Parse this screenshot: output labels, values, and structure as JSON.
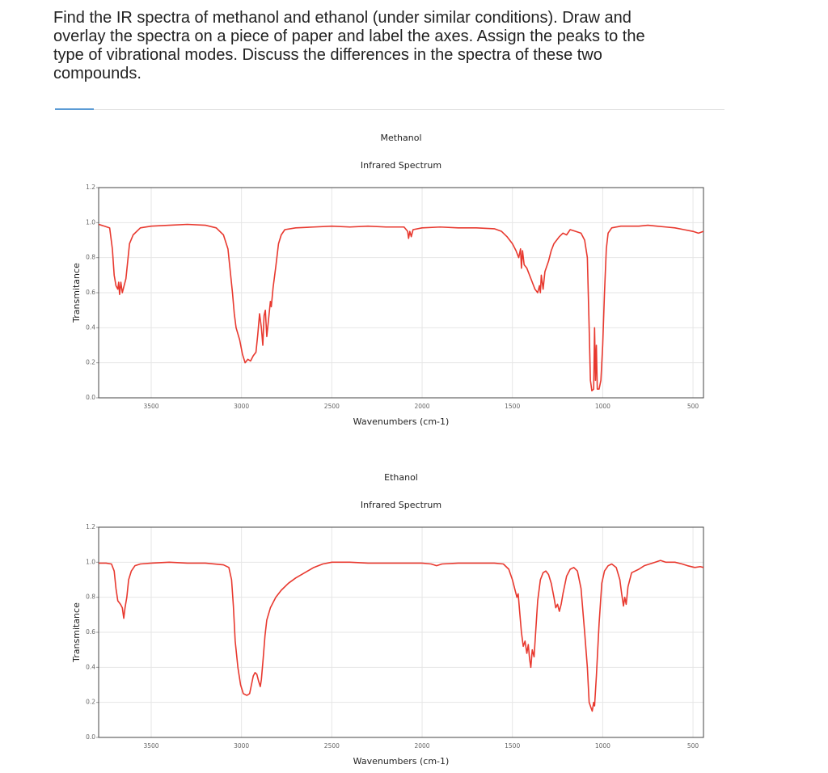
{
  "question": [
    "Find the IR spectra of methanol and ethanol (under similar conditions). Draw and",
    "overlay the spectra on a piece of paper and label the axes. Assign the peaks to the",
    "type of vibrational modes. Discuss the differences in the spectra of these two",
    "compounds."
  ],
  "chart_data": [
    {
      "type": "line",
      "title": "Methanol",
      "subtitle": "Infrared Spectrum",
      "xlabel": "Wavenumbers (cm-1)",
      "ylabel": "Transmitance",
      "color": "#e8392f",
      "grid": true,
      "xlim": [
        3791,
        442
      ],
      "ylim": [
        0,
        1.2
      ],
      "xticks": [
        3500,
        3000,
        2500,
        2000,
        1500,
        1000,
        500
      ],
      "yticks": [
        {
          "value": 0,
          "label": "0.0"
        },
        0.2,
        0.4,
        0.6,
        0.8,
        {
          "value": 1,
          "label": "1.0"
        },
        1.2
      ],
      "x": [
        3790,
        3760,
        3730,
        3715,
        3705,
        3695,
        3685,
        3680,
        3675,
        3668,
        3660,
        3650,
        3640,
        3630,
        3620,
        3600,
        3560,
        3500,
        3400,
        3300,
        3200,
        3140,
        3100,
        3075,
        3060,
        3050,
        3040,
        3030,
        3010,
        2995,
        2980,
        2965,
        2950,
        2935,
        2920,
        2910,
        2900,
        2890,
        2882,
        2875,
        2868,
        2860,
        2850,
        2840,
        2835,
        2825,
        2810,
        2795,
        2780,
        2760,
        2700,
        2600,
        2500,
        2400,
        2300,
        2200,
        2100,
        2080,
        2075,
        2068,
        2060,
        2050,
        2000,
        1900,
        1800,
        1700,
        1600,
        1560,
        1530,
        1500,
        1480,
        1465,
        1455,
        1450,
        1444,
        1435,
        1420,
        1405,
        1390,
        1375,
        1360,
        1350,
        1345,
        1340,
        1330,
        1320,
        1300,
        1285,
        1270,
        1255,
        1240,
        1220,
        1200,
        1180,
        1150,
        1120,
        1100,
        1085,
        1075,
        1068,
        1060,
        1050,
        1045,
        1040,
        1035,
        1030,
        1020,
        1010,
        1000,
        990,
        980,
        970,
        950,
        900,
        800,
        750,
        700,
        650,
        600,
        550,
        500,
        470,
        442
      ],
      "values": [
        0.99,
        0.98,
        0.97,
        0.85,
        0.7,
        0.64,
        0.62,
        0.66,
        0.59,
        0.66,
        0.6,
        0.64,
        0.68,
        0.78,
        0.88,
        0.93,
        0.97,
        0.98,
        0.985,
        0.99,
        0.985,
        0.97,
        0.93,
        0.85,
        0.7,
        0.6,
        0.48,
        0.4,
        0.33,
        0.25,
        0.2,
        0.22,
        0.21,
        0.24,
        0.26,
        0.36,
        0.48,
        0.4,
        0.3,
        0.47,
        0.5,
        0.35,
        0.45,
        0.55,
        0.52,
        0.63,
        0.75,
        0.88,
        0.93,
        0.96,
        0.97,
        0.975,
        0.98,
        0.975,
        0.98,
        0.975,
        0.975,
        0.95,
        0.91,
        0.95,
        0.92,
        0.96,
        0.97,
        0.975,
        0.97,
        0.97,
        0.965,
        0.95,
        0.92,
        0.88,
        0.84,
        0.8,
        0.85,
        0.74,
        0.84,
        0.76,
        0.74,
        0.7,
        0.66,
        0.62,
        0.6,
        0.64,
        0.6,
        0.7,
        0.62,
        0.72,
        0.78,
        0.84,
        0.88,
        0.9,
        0.92,
        0.94,
        0.93,
        0.96,
        0.95,
        0.94,
        0.9,
        0.8,
        0.4,
        0.1,
        0.04,
        0.05,
        0.4,
        0.1,
        0.3,
        0.05,
        0.05,
        0.1,
        0.3,
        0.6,
        0.85,
        0.94,
        0.97,
        0.98,
        0.98,
        0.985,
        0.98,
        0.975,
        0.97,
        0.96,
        0.95,
        0.94,
        0.95
      ]
    },
    {
      "type": "line",
      "title": "Ethanol",
      "subtitle": "Infrared Spectrum",
      "xlabel": "Wavenumbers (cm-1)",
      "ylabel": "Transmitance",
      "color": "#e8392f",
      "grid": true,
      "xlim": [
        3791,
        442
      ],
      "ylim": [
        0,
        1.2
      ],
      "xticks": [
        3500,
        3000,
        2500,
        2000,
        1500,
        1000,
        500
      ],
      "yticks": [
        {
          "value": 0,
          "label": "0.0"
        },
        0.2,
        0.4,
        0.6,
        0.8,
        {
          "value": 1,
          "label": "1.0"
        },
        1.2
      ],
      "x": [
        3790,
        3750,
        3720,
        3705,
        3695,
        3685,
        3670,
        3660,
        3652,
        3645,
        3635,
        3625,
        3610,
        3590,
        3560,
        3500,
        3400,
        3300,
        3200,
        3100,
        3070,
        3055,
        3045,
        3035,
        3020,
        3005,
        2990,
        2970,
        2955,
        2945,
        2935,
        2925,
        2915,
        2905,
        2896,
        2890,
        2880,
        2870,
        2860,
        2840,
        2810,
        2780,
        2740,
        2700,
        2650,
        2600,
        2550,
        2500,
        2400,
        2300,
        2200,
        2100,
        2000,
        1950,
        1920,
        1890,
        1800,
        1700,
        1600,
        1550,
        1520,
        1500,
        1485,
        1475,
        1468,
        1460,
        1450,
        1440,
        1430,
        1420,
        1412,
        1405,
        1398,
        1390,
        1380,
        1370,
        1360,
        1345,
        1330,
        1315,
        1300,
        1285,
        1270,
        1260,
        1250,
        1240,
        1230,
        1220,
        1200,
        1180,
        1160,
        1140,
        1120,
        1100,
        1085,
        1075,
        1065,
        1058,
        1050,
        1045,
        1035,
        1020,
        1005,
        990,
        970,
        950,
        925,
        905,
        895,
        885,
        878,
        870,
        860,
        840,
        800,
        770,
        740,
        710,
        680,
        650,
        600,
        560,
        530,
        490,
        460,
        442
      ],
      "values": [
        0.995,
        0.995,
        0.99,
        0.95,
        0.85,
        0.78,
        0.76,
        0.74,
        0.68,
        0.74,
        0.8,
        0.9,
        0.95,
        0.98,
        0.99,
        0.995,
        1.0,
        0.995,
        0.995,
        0.985,
        0.97,
        0.9,
        0.75,
        0.55,
        0.4,
        0.3,
        0.25,
        0.24,
        0.25,
        0.3,
        0.35,
        0.37,
        0.36,
        0.32,
        0.29,
        0.33,
        0.45,
        0.58,
        0.67,
        0.74,
        0.8,
        0.84,
        0.88,
        0.91,
        0.94,
        0.97,
        0.99,
        1.0,
        1.0,
        0.995,
        0.995,
        0.995,
        0.995,
        0.99,
        0.98,
        0.99,
        0.995,
        0.995,
        0.995,
        0.99,
        0.96,
        0.9,
        0.84,
        0.8,
        0.82,
        0.72,
        0.6,
        0.52,
        0.55,
        0.48,
        0.53,
        0.45,
        0.4,
        0.5,
        0.46,
        0.62,
        0.78,
        0.9,
        0.94,
        0.95,
        0.93,
        0.88,
        0.8,
        0.74,
        0.76,
        0.72,
        0.76,
        0.82,
        0.92,
        0.96,
        0.97,
        0.95,
        0.85,
        0.6,
        0.4,
        0.2,
        0.17,
        0.15,
        0.2,
        0.18,
        0.35,
        0.65,
        0.88,
        0.95,
        0.98,
        0.99,
        0.97,
        0.9,
        0.82,
        0.75,
        0.8,
        0.76,
        0.86,
        0.94,
        0.96,
        0.98,
        0.99,
        1.0,
        1.01,
        1.0,
        1.0,
        0.99,
        0.98,
        0.97,
        0.975,
        0.97
      ]
    }
  ]
}
